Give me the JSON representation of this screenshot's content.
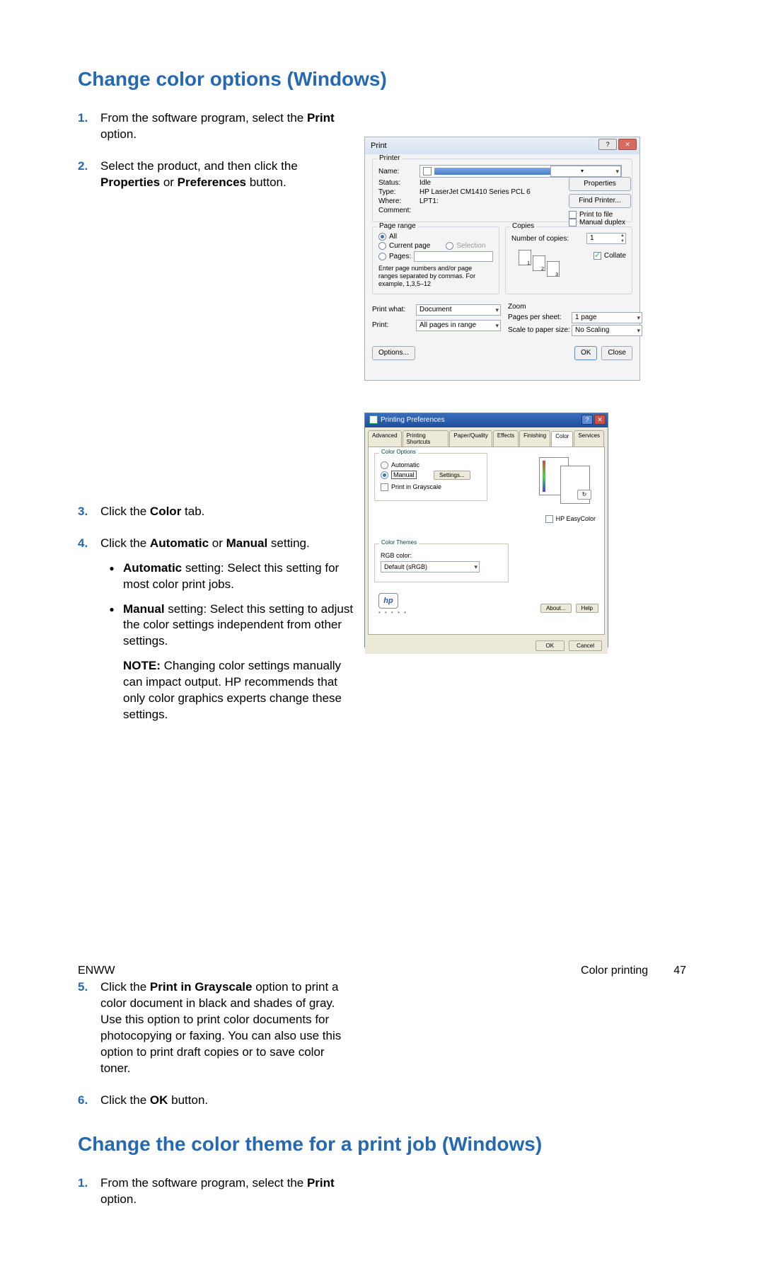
{
  "colors": {
    "heading": "#2568b3",
    "text": "#000000",
    "dialog_border": "#a6b3c5",
    "dialog_bg": "#f4f4f4",
    "xp_title_gradient_top": "#3a6ebd",
    "xp_title_gradient_bottom": "#1f4e9b",
    "xp_bg": "#ece9d8"
  },
  "heading1": "Change color options (Windows)",
  "heading2": "Change the color theme for a print job (Windows)",
  "steps": {
    "s1_a": "From the software program, select the ",
    "s1_b": "Print",
    "s1_c": " option.",
    "s2_a": "Select the product, and then click the ",
    "s2_b": "Properties",
    "s2_c": " or ",
    "s2_d": "Preferences",
    "s2_e": " button.",
    "s3_a": "Click the ",
    "s3_b": "Color",
    "s3_c": " tab.",
    "s4_a": "Click the ",
    "s4_b": "Automatic",
    "s4_c": " or ",
    "s4_d": "Manual",
    "s4_e": " setting.",
    "s4_auto_a": "Automatic",
    "s4_auto_b": " setting: Select this setting for most color print jobs.",
    "s4_man_a": "Manual",
    "s4_man_b": " setting: Select this setting to adjust the color settings independent from other settings.",
    "s4_note_a": "NOTE:",
    "s4_note_b": "   Changing color settings manually can impact output. HP recommends that only color graphics experts change these settings.",
    "s5_a": "Click the ",
    "s5_b": "Print in Grayscale",
    "s5_c": " option to print a color document in black and shades of gray. Use this option to print color documents for photocopying or faxing. You can also use this option to print draft copies or to save color toner.",
    "s6_a": "Click the ",
    "s6_b": "OK",
    "s6_c": " button.",
    "h2_s1_a": "From the software program, select the ",
    "h2_s1_b": "Print",
    "h2_s1_c": " option."
  },
  "dialog1": {
    "title": "Print",
    "printer_leg": "Printer",
    "name": "Name:",
    "status": "Status:",
    "status_val": "Idle",
    "type": "Type:",
    "type_val": "HP LaserJet CM1410 Series PCL 6",
    "where": "Where:",
    "where_val": "LPT1:",
    "comment": "Comment:",
    "properties_btn": "Properties",
    "find_btn": "Find Printer...",
    "print_to_file": "Print to file",
    "manual_duplex": "Manual duplex",
    "range_leg": "Page range",
    "all": "All",
    "current": "Current page",
    "selection": "Selection",
    "pages": "Pages:",
    "pages_note": "Enter page numbers and/or page ranges separated by commas. For example, 1,3,5–12",
    "copies_leg": "Copies",
    "num_copies": "Number of copies:",
    "copies_val": "1",
    "collate": "Collate",
    "print_what": "Print what:",
    "print_what_val": "Document",
    "print": "Print:",
    "print_val": "All pages in range",
    "zoom_leg": "Zoom",
    "pps": "Pages per sheet:",
    "pps_val": "1 page",
    "scale": "Scale to paper size:",
    "scale_val": "No Scaling",
    "options_btn": "Options...",
    "ok_btn": "OK",
    "close_btn": "Close"
  },
  "dialog2": {
    "title": "Printing Preferences",
    "tabs": [
      "Advanced",
      "Printing Shortcuts",
      "Paper/Quality",
      "Effects",
      "Finishing",
      "Color",
      "Services"
    ],
    "active_tab_index": 5,
    "color_options_leg": "Color Options",
    "auto": "Automatic",
    "manual": "Manual",
    "settings_btn": "Settings...",
    "grayscale": "Print in Grayscale",
    "easycolor": "HP EasyColor",
    "themes_leg": "Color Themes",
    "rgb": "RGB color:",
    "rgb_val": "Default (sRGB)",
    "about_btn": "About...",
    "help_btn": "Help",
    "ok_btn": "OK",
    "cancel_btn": "Cancel",
    "hp": "hp"
  },
  "footer": {
    "left": "ENWW",
    "section": "Color printing",
    "page": "47"
  }
}
